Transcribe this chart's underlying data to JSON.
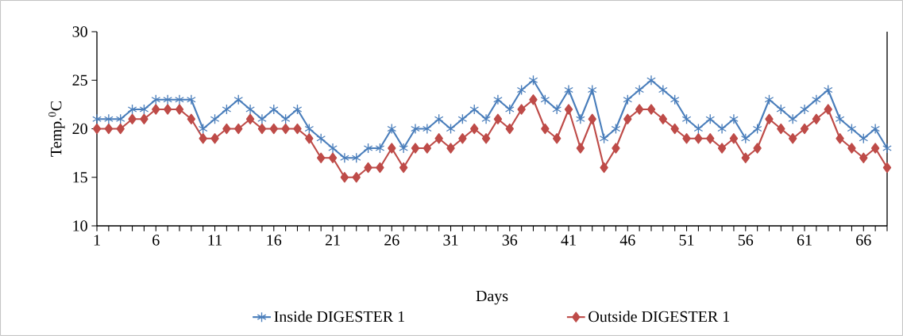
{
  "chart_data": {
    "type": "line",
    "xlabel": "Days",
    "ylabel": "Temp.$^{0}$C",
    "categories": [
      "1",
      null,
      null,
      null,
      null,
      "6",
      null,
      null,
      null,
      null,
      "11",
      null,
      null,
      null,
      null,
      "16",
      null,
      null,
      null,
      null,
      "21",
      null,
      null,
      null,
      null,
      "26",
      null,
      null,
      null,
      null,
      "31",
      null,
      null,
      null,
      null,
      "36",
      null,
      null,
      null,
      null,
      "41",
      null,
      null,
      null,
      null,
      "46",
      null,
      null,
      null,
      null,
      "51",
      null,
      null,
      null,
      null,
      "56",
      null,
      null,
      null,
      null,
      "61",
      null,
      null,
      null,
      null,
      "66",
      null,
      null
    ],
    "series": [
      {
        "name": "Inside DIGESTER 1",
        "color": "#4a7ebb",
        "marker": "cross",
        "values": [
          21,
          21,
          21,
          22,
          22,
          23,
          23,
          23,
          23,
          20,
          21,
          22,
          23,
          22,
          21,
          22,
          21,
          22,
          20,
          19,
          18,
          17,
          17,
          18,
          18,
          20,
          18,
          20,
          20,
          21,
          20,
          21,
          22,
          21,
          23,
          22,
          24,
          25,
          23,
          22,
          24,
          21,
          24,
          19,
          20,
          23,
          24,
          25,
          24,
          23,
          21,
          20,
          21,
          20,
          21,
          19,
          20,
          23,
          22,
          21,
          22,
          23,
          24,
          21,
          20,
          19,
          20,
          18
        ]
      },
      {
        "name": "Outside DIGESTER 1",
        "color": "#be4b48",
        "marker": "diamond",
        "values": [
          20,
          20,
          20,
          21,
          21,
          22,
          22,
          22,
          21,
          19,
          19,
          20,
          20,
          21,
          20,
          20,
          20,
          20,
          19,
          17,
          17,
          15,
          15,
          16,
          16,
          18,
          16,
          18,
          18,
          19,
          18,
          19,
          20,
          19,
          21,
          20,
          22,
          23,
          20,
          19,
          22,
          18,
          21,
          16,
          18,
          21,
          22,
          22,
          21,
          20,
          19,
          19,
          19,
          18,
          19,
          17,
          18,
          21,
          20,
          19,
          20,
          21,
          22,
          19,
          18,
          17,
          18,
          16
        ]
      }
    ],
    "ylim": [
      10,
      30
    ],
    "yticks": [
      10,
      15,
      20,
      25,
      30
    ],
    "grid": false,
    "legend": "bottom",
    "line_style": "solid"
  }
}
